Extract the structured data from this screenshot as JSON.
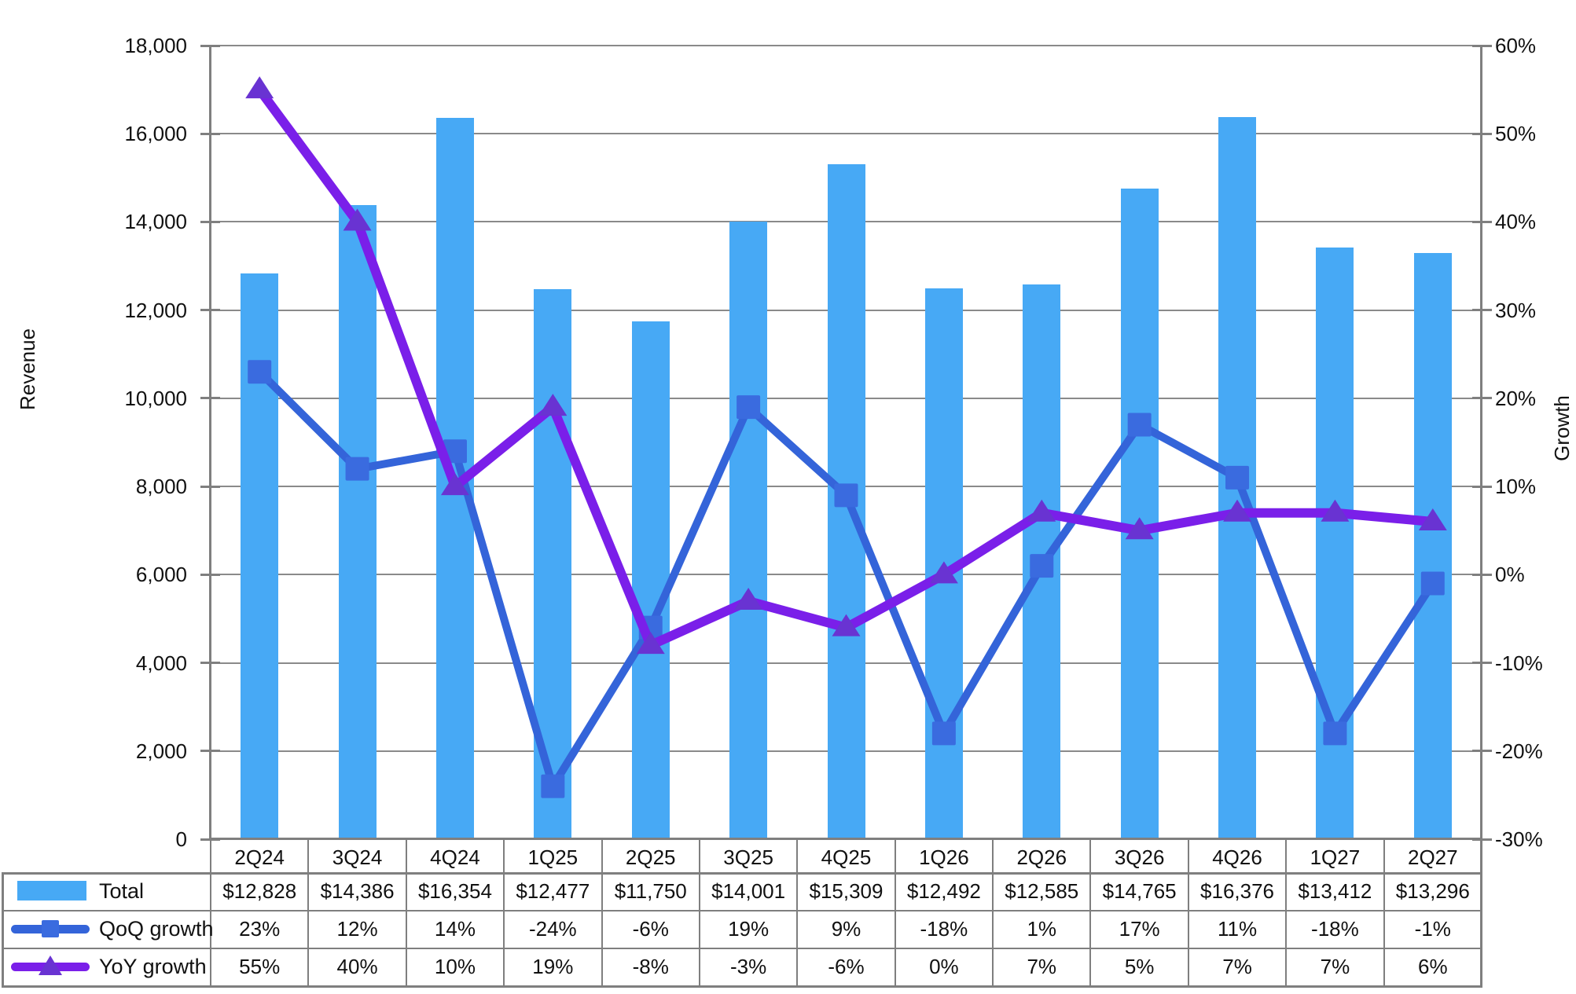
{
  "axes": {
    "left": {
      "title": "Revenue",
      "labels": [
        "18,000",
        "16,000",
        "14,000",
        "12,000",
        "10,000",
        "8,000",
        "6,000",
        "4,000",
        "2,000",
        "0"
      ]
    },
    "right": {
      "title": "Growth",
      "labels": [
        "60%",
        "50%",
        "40%",
        "30%",
        "20%",
        "10%",
        "0%",
        "-10%",
        "-20%",
        "-30%"
      ]
    }
  },
  "chart_data": {
    "type": "combo-bar-line",
    "categories": [
      "2Q24",
      "3Q24",
      "4Q24",
      "1Q25",
      "2Q25",
      "3Q25",
      "4Q25",
      "1Q26",
      "2Q26",
      "3Q26",
      "4Q26",
      "1Q27",
      "2Q27"
    ],
    "series": [
      {
        "name": "Total",
        "type": "bar",
        "axis": "left",
        "color": "#47A9F5",
        "values": [
          12828,
          14386,
          16354,
          12477,
          11750,
          14001,
          15309,
          12492,
          12585,
          14765,
          16376,
          13412,
          13296
        ],
        "display": [
          "$12,828",
          "$14,386",
          "$16,354",
          "$12,477",
          "$11,750",
          "$14,001",
          "$15,309",
          "$12,492",
          "$12,585",
          "$14,765",
          "$16,376",
          "$13,412",
          "$13,296"
        ]
      },
      {
        "name": "QoQ growth",
        "type": "line",
        "marker": "square",
        "axis": "right",
        "color": "#3464D9",
        "marker_color": "#3A6BDF",
        "values": [
          23,
          12,
          14,
          -24,
          -6,
          19,
          9,
          -18,
          1,
          17,
          11,
          -18,
          -1
        ],
        "display": [
          "23%",
          "12%",
          "14%",
          "-24%",
          "-6%",
          "19%",
          "9%",
          "-18%",
          "1%",
          "17%",
          "11%",
          "-18%",
          "-1%"
        ]
      },
      {
        "name": "YoY growth",
        "type": "line",
        "marker": "triangle",
        "axis": "right",
        "color": "#7A1FE9",
        "marker_color": "#6933D2",
        "values": [
          55,
          40,
          10,
          19,
          -8,
          -3,
          -6,
          0,
          7,
          5,
          7,
          7,
          6
        ],
        "display": [
          "55%",
          "40%",
          "10%",
          "19%",
          "-8%",
          "-3%",
          "-6%",
          "0%",
          "7%",
          "5%",
          "7%",
          "7%",
          "6%"
        ]
      }
    ],
    "left_axis_range": [
      0,
      18000
    ],
    "right_axis_range": [
      -30,
      60
    ],
    "grid": true,
    "legend_position": "table-left"
  },
  "colors": {
    "background": "#FFFFFF",
    "gridline": "#8A8A8A",
    "axis": "#7F7F7F",
    "table_border": "#7F7F7F",
    "text": "#111111"
  }
}
